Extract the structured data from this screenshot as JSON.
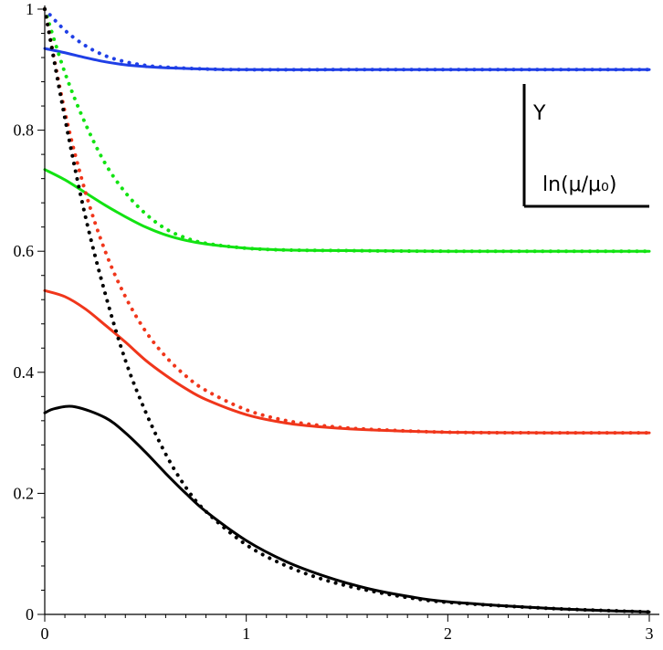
{
  "chart_data": {
    "type": "line",
    "title": "",
    "xlabel": "",
    "ylabel": "",
    "xlim": [
      0,
      3
    ],
    "ylim": [
      0,
      1
    ],
    "x_ticks": [
      0,
      1,
      2,
      3
    ],
    "y_ticks": [
      0,
      0.2,
      0.4,
      0.6,
      0.8,
      1
    ],
    "x_tick_labels": [
      "0",
      "1",
      "2",
      "3"
    ],
    "y_tick_labels": [
      "0",
      "0.2",
      "0.4",
      "0.6",
      "0.8",
      "1"
    ],
    "x_minor_step": 0.1,
    "y_minor_step": 0.04,
    "grid": false,
    "axis_key": {
      "y_label": "Y",
      "x_label": "ln(μ/μ₀)",
      "placement": "top-right"
    },
    "series": [
      {
        "color": "#1f3fe6",
        "style": "solid",
        "x": [
          0,
          0.1,
          0.2,
          0.3,
          0.4,
          0.5,
          0.6,
          0.8,
          1.0,
          1.5,
          2.0,
          3.0
        ],
        "y": [
          0.935,
          0.928,
          0.92,
          0.913,
          0.908,
          0.905,
          0.903,
          0.901,
          0.9,
          0.9,
          0.9,
          0.9
        ]
      },
      {
        "color": "#1f3fe6",
        "style": "dotted",
        "x": [
          0,
          0.1,
          0.2,
          0.3,
          0.4,
          0.5,
          0.6,
          0.8,
          1.0,
          1.5,
          2.0,
          3.0
        ],
        "y": [
          1.0,
          0.965,
          0.94,
          0.923,
          0.913,
          0.907,
          0.904,
          0.901,
          0.9,
          0.9,
          0.9,
          0.9
        ]
      },
      {
        "color": "#12e312",
        "style": "solid",
        "x": [
          0,
          0.1,
          0.2,
          0.3,
          0.4,
          0.5,
          0.6,
          0.7,
          0.8,
          1.0,
          1.2,
          1.5,
          2.0,
          3.0
        ],
        "y": [
          0.735,
          0.718,
          0.697,
          0.676,
          0.657,
          0.64,
          0.627,
          0.618,
          0.612,
          0.605,
          0.602,
          0.601,
          0.6,
          0.6
        ]
      },
      {
        "color": "#12e312",
        "style": "dotted",
        "x": [
          0,
          0.1,
          0.2,
          0.3,
          0.4,
          0.5,
          0.6,
          0.7,
          0.8,
          1.0,
          1.2,
          1.5,
          2.0,
          3.0
        ],
        "y": [
          1.0,
          0.895,
          0.812,
          0.745,
          0.697,
          0.662,
          0.637,
          0.622,
          0.613,
          0.605,
          0.602,
          0.601,
          0.6,
          0.6
        ]
      },
      {
        "color": "#f0361b",
        "style": "solid",
        "x": [
          0,
          0.1,
          0.2,
          0.3,
          0.4,
          0.5,
          0.6,
          0.7,
          0.8,
          1.0,
          1.2,
          1.4,
          1.6,
          2.0,
          2.5,
          3.0
        ],
        "y": [
          0.535,
          0.525,
          0.505,
          0.478,
          0.45,
          0.42,
          0.395,
          0.373,
          0.355,
          0.33,
          0.316,
          0.309,
          0.305,
          0.301,
          0.3,
          0.3
        ]
      },
      {
        "color": "#f0361b",
        "style": "dotted",
        "x": [
          0,
          0.1,
          0.2,
          0.3,
          0.4,
          0.5,
          0.6,
          0.7,
          0.8,
          1.0,
          1.2,
          1.4,
          1.6,
          2.0,
          2.5,
          3.0
        ],
        "y": [
          1.0,
          0.83,
          0.7,
          0.6,
          0.525,
          0.468,
          0.426,
          0.394,
          0.37,
          0.338,
          0.32,
          0.311,
          0.306,
          0.301,
          0.3,
          0.3
        ]
      },
      {
        "color": "#000000",
        "style": "solid",
        "x": [
          0,
          0.05,
          0.15,
          0.3,
          0.4,
          0.5,
          0.6,
          0.7,
          0.8,
          1.0,
          1.2,
          1.4,
          1.6,
          1.8,
          2.0,
          2.5,
          3.0
        ],
        "y": [
          0.333,
          0.34,
          0.343,
          0.325,
          0.3,
          0.268,
          0.233,
          0.2,
          0.17,
          0.122,
          0.087,
          0.062,
          0.043,
          0.03,
          0.021,
          0.01,
          0.004
        ]
      },
      {
        "color": "#000000",
        "style": "dotted",
        "x": [
          0,
          0.1,
          0.2,
          0.3,
          0.4,
          0.5,
          0.6,
          0.7,
          0.8,
          1.0,
          1.2,
          1.4,
          1.6,
          1.8,
          2.0,
          2.5,
          3.0
        ],
        "y": [
          1.0,
          0.82,
          0.66,
          0.53,
          0.42,
          0.335,
          0.265,
          0.21,
          0.17,
          0.115,
          0.08,
          0.056,
          0.04,
          0.028,
          0.02,
          0.01,
          0.004
        ]
      }
    ]
  }
}
